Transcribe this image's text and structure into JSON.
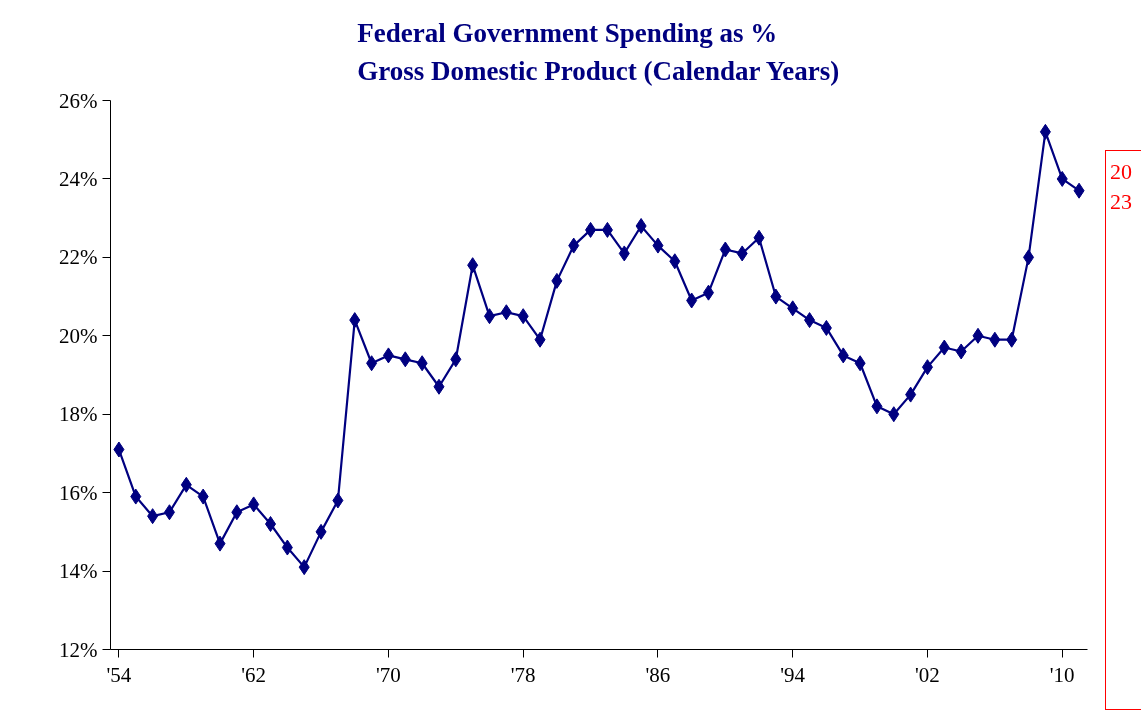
{
  "chart_data": {
    "type": "line",
    "title": "Federal Government Spending as %\nGross Domestic Product (Calendar Years)",
    "x": [
      1954,
      1955,
      1956,
      1957,
      1958,
      1959,
      1960,
      1961,
      1962,
      1963,
      1964,
      1965,
      1966,
      1967,
      1968,
      1969,
      1970,
      1971,
      1972,
      1973,
      1974,
      1975,
      1976,
      1977,
      1978,
      1979,
      1980,
      1981,
      1982,
      1983,
      1984,
      1985,
      1986,
      1987,
      1988,
      1989,
      1990,
      1991,
      1992,
      1993,
      1994,
      1995,
      1996,
      1997,
      1998,
      1999,
      2000,
      2001,
      2002,
      2003,
      2004,
      2005,
      2006,
      2007,
      2008,
      2009,
      2010,
      2011
    ],
    "series": [
      {
        "color": "#000080",
        "values": [
          17.1,
          15.9,
          15.4,
          15.5,
          16.2,
          15.9,
          14.7,
          15.5,
          15.7,
          15.2,
          14.6,
          14.1,
          15.0,
          15.8,
          20.4,
          19.3,
          19.5,
          19.4,
          19.3,
          18.7,
          19.4,
          21.8,
          20.5,
          20.6,
          20.5,
          19.9,
          21.4,
          22.3,
          22.7,
          22.7,
          22.1,
          22.8,
          22.3,
          21.9,
          20.9,
          21.1,
          22.2,
          22.1,
          22.5,
          21.0,
          20.7,
          20.4,
          20.2,
          19.5,
          19.3,
          18.2,
          18.0,
          18.5,
          19.2,
          19.7,
          19.6,
          20.0,
          19.9,
          19.9,
          22.0,
          25.2,
          24.0,
          23.7
        ]
      }
    ],
    "xlim": [
      1953.5,
      2011.5
    ],
    "xticks": [
      {
        "value": 1954,
        "label": "'54"
      },
      {
        "value": 1962,
        "label": "'62"
      },
      {
        "value": 1970,
        "label": "'70"
      },
      {
        "value": 1978,
        "label": "'78"
      },
      {
        "value": 1986,
        "label": "'86"
      },
      {
        "value": 1994,
        "label": "'94"
      },
      {
        "value": 2002,
        "label": "'02"
      },
      {
        "value": 2010,
        "label": "'10"
      }
    ],
    "ylim": [
      12,
      26
    ],
    "yticks": [
      {
        "value": 12,
        "label": "12%"
      },
      {
        "value": 14,
        "label": "14%"
      },
      {
        "value": 16,
        "label": "16%"
      },
      {
        "value": 18,
        "label": "18%"
      },
      {
        "value": 20,
        "label": "20%"
      },
      {
        "value": 22,
        "label": "22%"
      },
      {
        "value": 24,
        "label": "24%"
      },
      {
        "value": 26,
        "label": "26%"
      }
    ],
    "grid": false,
    "marker": "diamond",
    "line_style": "solid",
    "annotations": [
      "20",
      "23"
    ]
  }
}
